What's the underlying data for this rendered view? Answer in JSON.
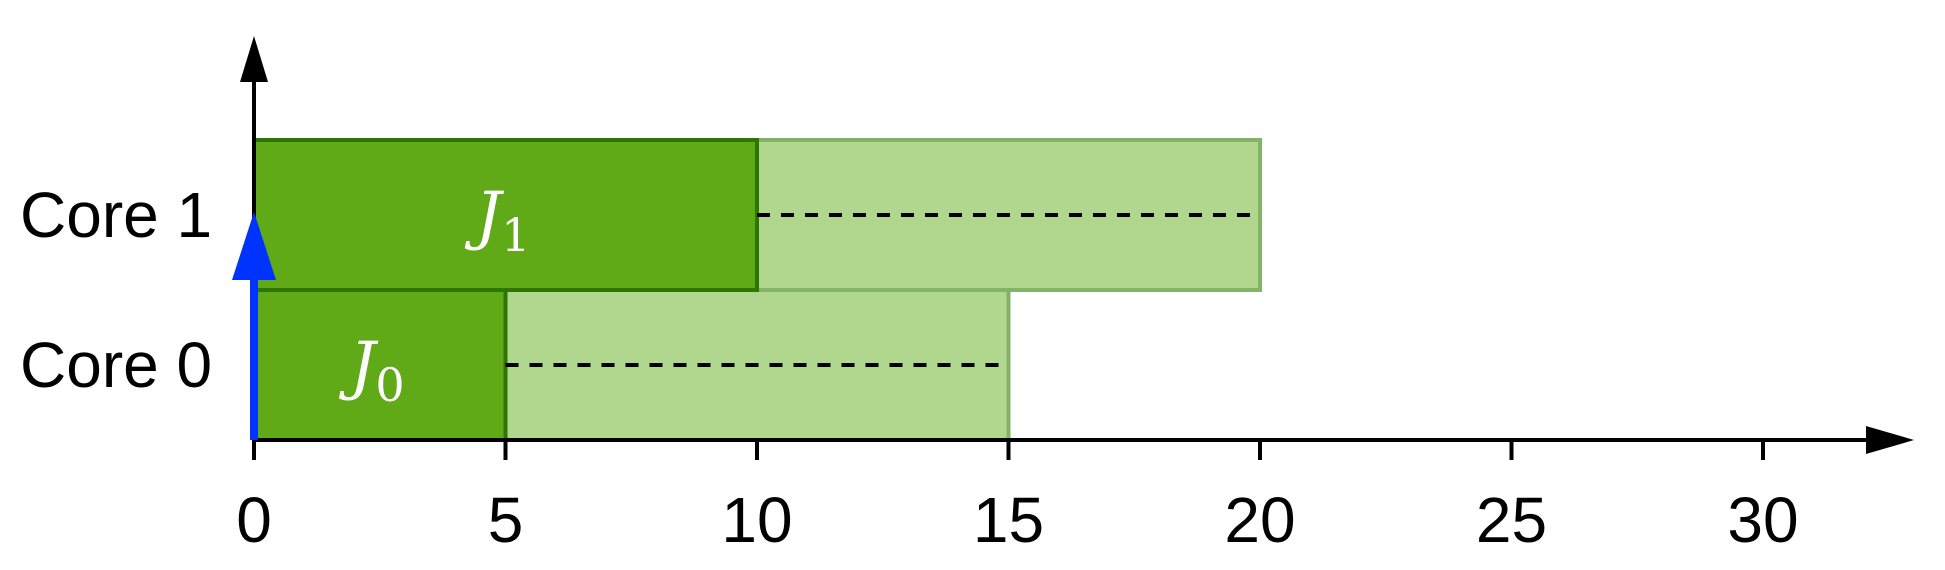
{
  "gantt": {
    "cores": [
      {
        "label": "Core 0"
      },
      {
        "label": "Core 1"
      }
    ],
    "x_ticks": [
      "0",
      "5",
      "10",
      "15",
      "20",
      "25",
      "30"
    ],
    "jobs": [
      {
        "name": "J",
        "sub": "0",
        "core": 0,
        "exec_start": 0,
        "exec_end": 5,
        "window_end": 15
      },
      {
        "name": "J",
        "sub": "1",
        "core": 1,
        "exec_start": 0,
        "exec_end": 10,
        "window_end": 20
      }
    ],
    "release_arrow_time": 0,
    "colors": {
      "exec_fill": "#60a917",
      "exec_stroke": "#2d7600",
      "window_fill": "#b1d78f",
      "window_stroke": "#82b366",
      "release_arrow": "#0033ff",
      "axis": "#000000"
    }
  }
}
